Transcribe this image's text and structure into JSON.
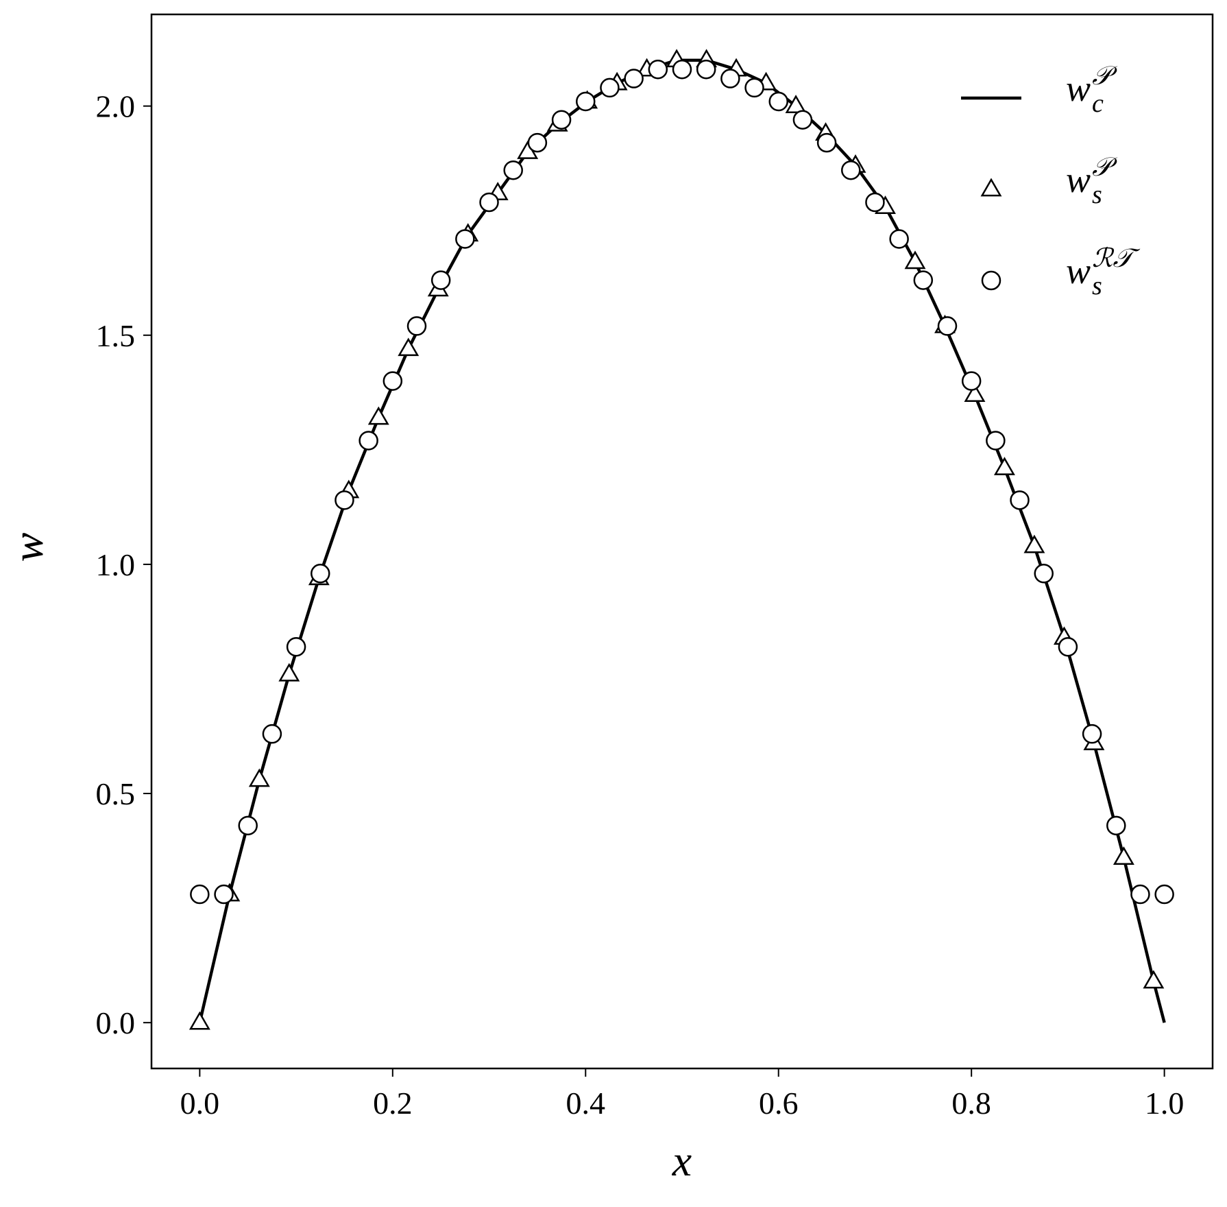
{
  "chart_data": {
    "type": "line",
    "x_label": "x",
    "y_label": "w",
    "xlim": [
      -0.05,
      1.05
    ],
    "ylim": [
      -0.1,
      2.2
    ],
    "xticks": [
      {
        "value": 0,
        "label": "0.0"
      },
      {
        "value": 0.2,
        "label": "0.2"
      },
      {
        "value": 0.4,
        "label": "0.4"
      },
      {
        "value": 0.6,
        "label": "0.6"
      },
      {
        "value": 0.8,
        "label": "0.8"
      },
      {
        "value": 1,
        "label": "1.0"
      }
    ],
    "yticks": [
      {
        "value": 0,
        "label": "0.0"
      },
      {
        "value": 0.5,
        "label": "0.5"
      },
      {
        "value": 1,
        "label": "1.0"
      },
      {
        "value": 1.5,
        "label": "1.5"
      },
      {
        "value": 2,
        "label": "2.0"
      }
    ],
    "legend": "upper right",
    "series": [
      {
        "name": "w_c^𝒫",
        "color": "#000000",
        "marker": "line",
        "x": [
          0,
          0.0309,
          0.0618,
          0.0927,
          0.1236,
          0.1545,
          0.1854,
          0.2163,
          0.2472,
          0.2781,
          0.309,
          0.3399,
          0.3708,
          0.4017,
          0.4326,
          0.4635,
          0.4944,
          0.5253,
          0.5562,
          0.5871,
          0.618,
          0.6489,
          0.6798,
          0.7107,
          0.7416,
          0.7725,
          0.8034,
          0.8343,
          0.8652,
          0.8961,
          0.927,
          0.9579,
          0.9888,
          1
        ],
        "values": [
          0,
          0.28,
          0.53,
          0.76,
          0.97,
          1.16,
          1.32,
          1.47,
          1.6,
          1.72,
          1.81,
          1.9,
          1.96,
          2.01,
          2.05,
          2.08,
          2.1,
          2.1,
          2.08,
          2.05,
          2.0,
          1.94,
          1.87,
          1.78,
          1.66,
          1.52,
          1.37,
          1.21,
          1.04,
          0.84,
          0.61,
          0.36,
          0.09,
          0
        ]
      },
      {
        "name": "w_s^𝒫",
        "color": "#000000",
        "marker": "triangle",
        "x": [
          0,
          0.0309,
          0.0618,
          0.0927,
          0.1236,
          0.1545,
          0.1854,
          0.2163,
          0.2472,
          0.2781,
          0.309,
          0.3399,
          0.3708,
          0.4017,
          0.4326,
          0.4635,
          0.4944,
          0.5253,
          0.5562,
          0.5871,
          0.618,
          0.6489,
          0.6798,
          0.7107,
          0.7416,
          0.7725,
          0.8034,
          0.8343,
          0.8652,
          0.8961,
          0.927,
          0.9579,
          0.9888
        ],
        "values": [
          0,
          0.28,
          0.53,
          0.76,
          0.97,
          1.16,
          1.32,
          1.47,
          1.6,
          1.72,
          1.81,
          1.9,
          1.96,
          2.01,
          2.05,
          2.08,
          2.1,
          2.1,
          2.08,
          2.05,
          2.0,
          1.94,
          1.87,
          1.78,
          1.66,
          1.52,
          1.37,
          1.21,
          1.04,
          0.84,
          0.61,
          0.36,
          0.09
        ]
      },
      {
        "name": "w_s^ℛ𝒯",
        "color": "#000000",
        "marker": "circle",
        "x": [
          0,
          0.025,
          0.05,
          0.075,
          0.1,
          0.125,
          0.15,
          0.175,
          0.2,
          0.225,
          0.25,
          0.275,
          0.3,
          0.325,
          0.35,
          0.375,
          0.4,
          0.425,
          0.45,
          0.475,
          0.5,
          0.525,
          0.55,
          0.575,
          0.6,
          0.625,
          0.65,
          0.675,
          0.7,
          0.725,
          0.75,
          0.775,
          0.8,
          0.825,
          0.85,
          0.875,
          0.9,
          0.925,
          0.95,
          0.975,
          1
        ],
        "values": [
          0.28,
          0.28,
          0.43,
          0.63,
          0.82,
          0.98,
          1.14,
          1.27,
          1.4,
          1.52,
          1.62,
          1.71,
          1.79,
          1.86,
          1.92,
          1.97,
          2.01,
          2.04,
          2.06,
          2.08,
          2.08,
          2.08,
          2.06,
          2.04,
          2.01,
          1.97,
          1.92,
          1.86,
          1.79,
          1.71,
          1.62,
          1.52,
          1.4,
          1.27,
          1.14,
          0.98,
          0.82,
          0.63,
          0.43,
          0.28,
          0.28
        ]
      }
    ]
  }
}
